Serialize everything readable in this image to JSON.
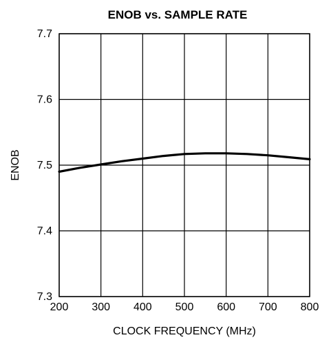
{
  "chart_data": {
    "type": "line",
    "title": "ENOB vs. SAMPLE RATE",
    "xlabel": "CLOCK FREQUENCY (MHz)",
    "ylabel": "ENOB",
    "xlim": [
      200,
      800
    ],
    "ylim": [
      7.3,
      7.7
    ],
    "x_ticks": [
      "200",
      "300",
      "400",
      "500",
      "600",
      "700",
      "800"
    ],
    "y_ticks": [
      "7.3",
      "7.4",
      "7.5",
      "7.6",
      "7.7"
    ],
    "grid": true,
    "series": [
      {
        "x": [
          200,
          250,
          300,
          350,
          400,
          450,
          500,
          550,
          600,
          650,
          700,
          750,
          800
        ],
        "values": [
          7.49,
          7.496,
          7.501,
          7.506,
          7.51,
          7.514,
          7.517,
          7.518,
          7.518,
          7.517,
          7.515,
          7.512,
          7.509
        ]
      }
    ]
  }
}
